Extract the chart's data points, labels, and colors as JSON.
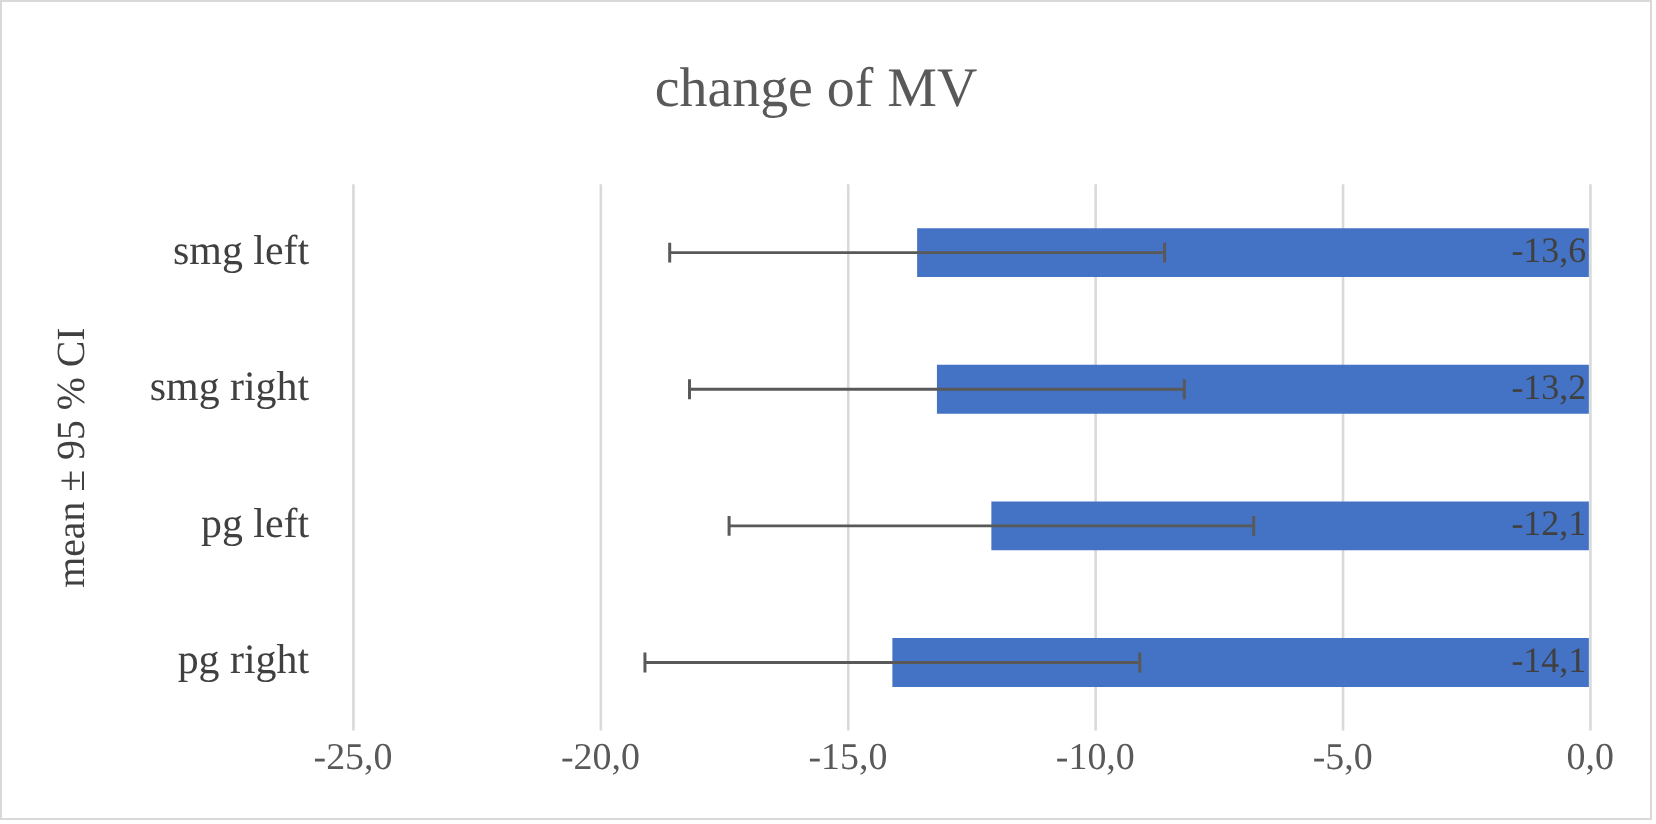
{
  "chart_data": {
    "type": "bar",
    "orientation": "horizontal",
    "title": "change of MV",
    "ylabel": "mean ± 95 % CI",
    "categories": [
      "smg left",
      "smg right",
      "pg left",
      "pg right"
    ],
    "values": [
      -13.6,
      -13.2,
      -12.1,
      -14.1
    ],
    "errors": [
      5.0,
      5.0,
      5.3,
      5.0
    ],
    "value_labels": [
      "-13,6",
      "-13,2",
      "-12,1",
      "-14,1"
    ],
    "color": "#4472c4",
    "xlim": [
      -25,
      0
    ],
    "xticks": [
      {
        "value": -25,
        "label": "-25,0"
      },
      {
        "value": -20,
        "label": "-20,0"
      },
      {
        "value": -15,
        "label": "-15,0"
      },
      {
        "value": -10,
        "label": "-10,0"
      },
      {
        "value": -5,
        "label": "-5,0"
      },
      {
        "value": 0,
        "label": "0,0"
      }
    ],
    "grid": "x",
    "legend": false
  }
}
